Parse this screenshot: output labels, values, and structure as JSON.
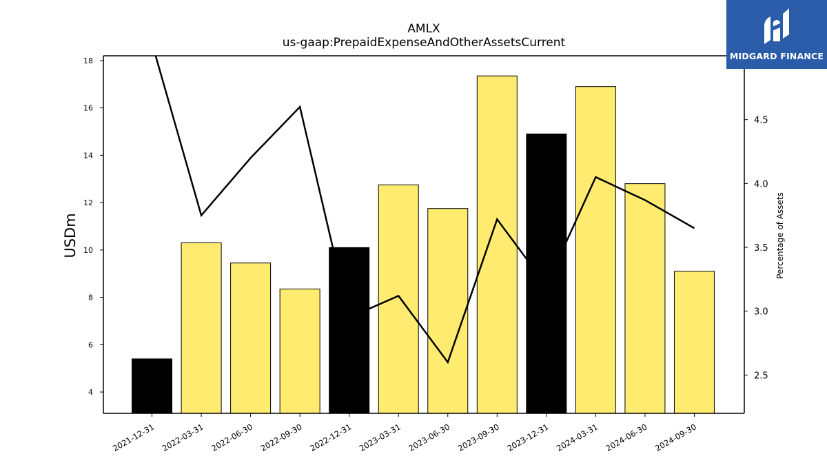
{
  "brand": {
    "name": "MIDGARD FINANCE",
    "color": "#2a5caa"
  },
  "chart_data": {
    "type": "bar",
    "title": "AMLX",
    "subtitle": "us-gaap:PrepaidExpenseAndOtherAssetsCurrent",
    "ylabel": "USDm",
    "y2label": "Percentage of Assets",
    "categories": [
      "2021-12-31",
      "2022-03-31",
      "2022-06-30",
      "2022-09-30",
      "2022-12-31",
      "2023-03-31",
      "2023-06-30",
      "2023-09-30",
      "2023-12-31",
      "2024-03-31",
      "2024-06-30",
      "2024-09-30"
    ],
    "ylim": [
      3.1,
      18.2
    ],
    "y2lim": [
      2.2,
      5.0
    ],
    "yticks": [
      4,
      6,
      8,
      10,
      12,
      14,
      16,
      18
    ],
    "y2ticks": [
      "2.5",
      "3.0",
      "3.5",
      "4.0",
      "4.5"
    ],
    "series": [
      {
        "kind": "bar",
        "values": [
          5.4,
          10.3,
          9.45,
          8.35,
          10.1,
          12.75,
          11.75,
          17.35,
          14.9,
          16.9,
          12.8,
          9.1
        ],
        "colors": [
          "#000000",
          "#ffeb70",
          "#ffeb70",
          "#ffeb70",
          "#000000",
          "#ffeb70",
          "#ffeb70",
          "#ffeb70",
          "#000000",
          "#ffeb70",
          "#ffeb70",
          "#ffeb70"
        ]
      },
      {
        "kind": "line",
        "axis": "right",
        "color": "#000000",
        "values": [
          5.1,
          3.75,
          4.2,
          4.6,
          2.95,
          3.12,
          2.6,
          3.72,
          3.2,
          4.05,
          3.87,
          3.65
        ]
      }
    ],
    "grid": false,
    "legend": "none"
  }
}
